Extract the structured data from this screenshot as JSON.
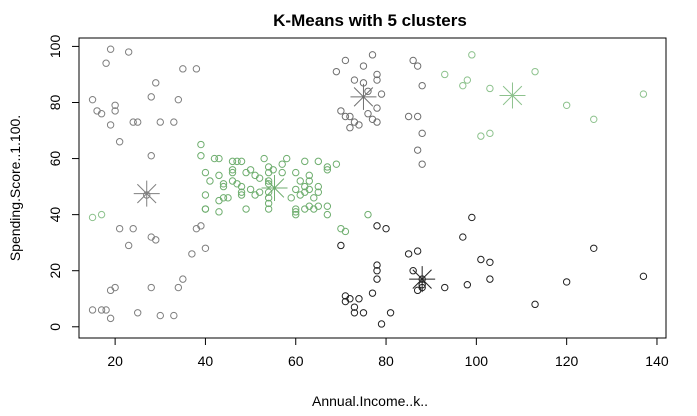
{
  "chart_data": {
    "type": "scatter",
    "title": "K-Means with 5 clusters",
    "xlabel": "Annual.Income..k..",
    "ylabel": "Spending.Score..1.100.",
    "xlim": [
      12,
      142
    ],
    "ylim": [
      -4,
      103
    ],
    "x_ticks": [
      20,
      40,
      60,
      80,
      100,
      120,
      140
    ],
    "y_ticks": [
      0,
      20,
      40,
      60,
      80,
      100
    ],
    "grid": false,
    "legend": null,
    "point_shape": "open-circle",
    "centroid_shape": "asterisk",
    "series": [
      {
        "color": "#7f7f7f",
        "points": [
          [
            15,
            81
          ],
          [
            16,
            77
          ],
          [
            17,
            76
          ],
          [
            18,
            94
          ],
          [
            19,
            72
          ],
          [
            19,
            99
          ],
          [
            20,
            77
          ],
          [
            20,
            79
          ],
          [
            21,
            66
          ],
          [
            23,
            98
          ],
          [
            24,
            73
          ],
          [
            25,
            73
          ],
          [
            28,
            82
          ],
          [
            29,
            87
          ],
          [
            30,
            73
          ],
          [
            33,
            73
          ],
          [
            34,
            81
          ],
          [
            35,
            92
          ],
          [
            38,
            92
          ],
          [
            15,
            6
          ],
          [
            17,
            6
          ],
          [
            18,
            6
          ],
          [
            19,
            3
          ],
          [
            20,
            14
          ],
          [
            19,
            13
          ],
          [
            21,
            35
          ],
          [
            23,
            29
          ],
          [
            24,
            35
          ],
          [
            25,
            5
          ],
          [
            28,
            14
          ],
          [
            28,
            32
          ],
          [
            29,
            31
          ],
          [
            30,
            4
          ],
          [
            33,
            4
          ],
          [
            34,
            14
          ],
          [
            35,
            17
          ],
          [
            37,
            26
          ],
          [
            38,
            35
          ],
          [
            39,
            36
          ],
          [
            40,
            28
          ],
          [
            28,
            61
          ],
          [
            27,
            47
          ]
        ],
        "centroid": [
          27,
          47.5
        ]
      },
      {
        "color": "#6f6f6f",
        "points": [
          [
            69,
            91
          ],
          [
            70,
            77
          ],
          [
            71,
            95
          ],
          [
            71,
            75
          ],
          [
            72,
            71
          ],
          [
            72,
            75
          ],
          [
            73,
            88
          ],
          [
            73,
            73
          ],
          [
            74,
            72
          ],
          [
            75,
            93
          ],
          [
            75,
            87
          ],
          [
            76,
            84
          ],
          [
            76,
            76
          ],
          [
            77,
            97
          ],
          [
            77,
            74
          ],
          [
            78,
            90
          ],
          [
            78,
            88
          ],
          [
            78,
            78
          ],
          [
            78,
            73
          ],
          [
            79,
            83
          ],
          [
            85,
            75
          ],
          [
            86,
            95
          ],
          [
            87,
            93
          ],
          [
            87,
            75
          ],
          [
            88,
            86
          ],
          [
            87,
            63
          ],
          [
            88,
            69
          ],
          [
            88,
            58
          ]
        ],
        "centroid": [
          75,
          82
        ]
      },
      {
        "color": "#8dc28d",
        "points": [
          [
            93,
            90
          ],
          [
            97,
            86
          ],
          [
            98,
            88
          ],
          [
            99,
            97
          ],
          [
            101,
            68
          ],
          [
            103,
            85
          ],
          [
            103,
            69
          ],
          [
            113,
            91
          ],
          [
            120,
            79
          ],
          [
            126,
            74
          ],
          [
            137,
            83
          ],
          [
            15,
            39
          ],
          [
            17,
            40
          ]
        ],
        "centroid": [
          108,
          82.5
        ]
      },
      {
        "color": "#222222",
        "points": [
          [
            70,
            29
          ],
          [
            71,
            11
          ],
          [
            71,
            9
          ],
          [
            72,
            10
          ],
          [
            73,
            5
          ],
          [
            73,
            7
          ],
          [
            74,
            10
          ],
          [
            75,
            5
          ],
          [
            77,
            12
          ],
          [
            78,
            36
          ],
          [
            78,
            22
          ],
          [
            78,
            20
          ],
          [
            78,
            17
          ],
          [
            79,
            1
          ],
          [
            80,
            35
          ],
          [
            81,
            5
          ],
          [
            85,
            26
          ],
          [
            86,
            20
          ],
          [
            87,
            27
          ],
          [
            87,
            13
          ],
          [
            88,
            15
          ],
          [
            88,
            14
          ],
          [
            88,
            17
          ],
          [
            93,
            14
          ],
          [
            97,
            32
          ],
          [
            98,
            15
          ],
          [
            99,
            39
          ],
          [
            101,
            24
          ],
          [
            103,
            23
          ],
          [
            103,
            17
          ],
          [
            113,
            8
          ],
          [
            120,
            16
          ],
          [
            126,
            28
          ],
          [
            137,
            18
          ]
        ],
        "centroid": [
          88,
          17
        ]
      },
      {
        "color": "#6fae6f",
        "points": [
          [
            39,
            61
          ],
          [
            39,
            65
          ],
          [
            40,
            55
          ],
          [
            40,
            47
          ],
          [
            40,
            42
          ],
          [
            40,
            42
          ],
          [
            41,
            52
          ],
          [
            42,
            60
          ],
          [
            43,
            54
          ],
          [
            43,
            60
          ],
          [
            43,
            45
          ],
          [
            43,
            41
          ],
          [
            44,
            50
          ],
          [
            44,
            46
          ],
          [
            44,
            51
          ],
          [
            45,
            46
          ],
          [
            46,
            56
          ],
          [
            46,
            55
          ],
          [
            46,
            52
          ],
          [
            46,
            59
          ],
          [
            47,
            51
          ],
          [
            47,
            59
          ],
          [
            48,
            50
          ],
          [
            48,
            48
          ],
          [
            48,
            59
          ],
          [
            48,
            47
          ],
          [
            49,
            55
          ],
          [
            49,
            42
          ],
          [
            50,
            49
          ],
          [
            50,
            56
          ],
          [
            51,
            47
          ],
          [
            51,
            54
          ],
          [
            52,
            53
          ],
          [
            52,
            48
          ],
          [
            53,
            60
          ],
          [
            54,
            52
          ],
          [
            54,
            46
          ],
          [
            54,
            55
          ],
          [
            54,
            51
          ],
          [
            54,
            57
          ],
          [
            54,
            42
          ],
          [
            54,
            44
          ],
          [
            54,
            48
          ],
          [
            55,
            56
          ],
          [
            57,
            58
          ],
          [
            57,
            55
          ],
          [
            58,
            60
          ],
          [
            59,
            46
          ],
          [
            60,
            55
          ],
          [
            60,
            41
          ],
          [
            60,
            49
          ],
          [
            60,
            40
          ],
          [
            60,
            42
          ],
          [
            61,
            52
          ],
          [
            61,
            47
          ],
          [
            62,
            50
          ],
          [
            62,
            42
          ],
          [
            62,
            48
          ],
          [
            62,
            59
          ],
          [
            63,
            49
          ],
          [
            63,
            43
          ],
          [
            63,
            54
          ],
          [
            63,
            52
          ],
          [
            64,
            42
          ],
          [
            64,
            46
          ],
          [
            65,
            48
          ],
          [
            65,
            50
          ],
          [
            65,
            43
          ],
          [
            65,
            59
          ],
          [
            67,
            43
          ],
          [
            67,
            57
          ],
          [
            67,
            56
          ],
          [
            67,
            40
          ],
          [
            69,
            58
          ],
          [
            70,
            35
          ],
          [
            71,
            34
          ],
          [
            76,
            40
          ]
        ],
        "centroid": [
          55.3,
          49.5
        ]
      }
    ]
  }
}
